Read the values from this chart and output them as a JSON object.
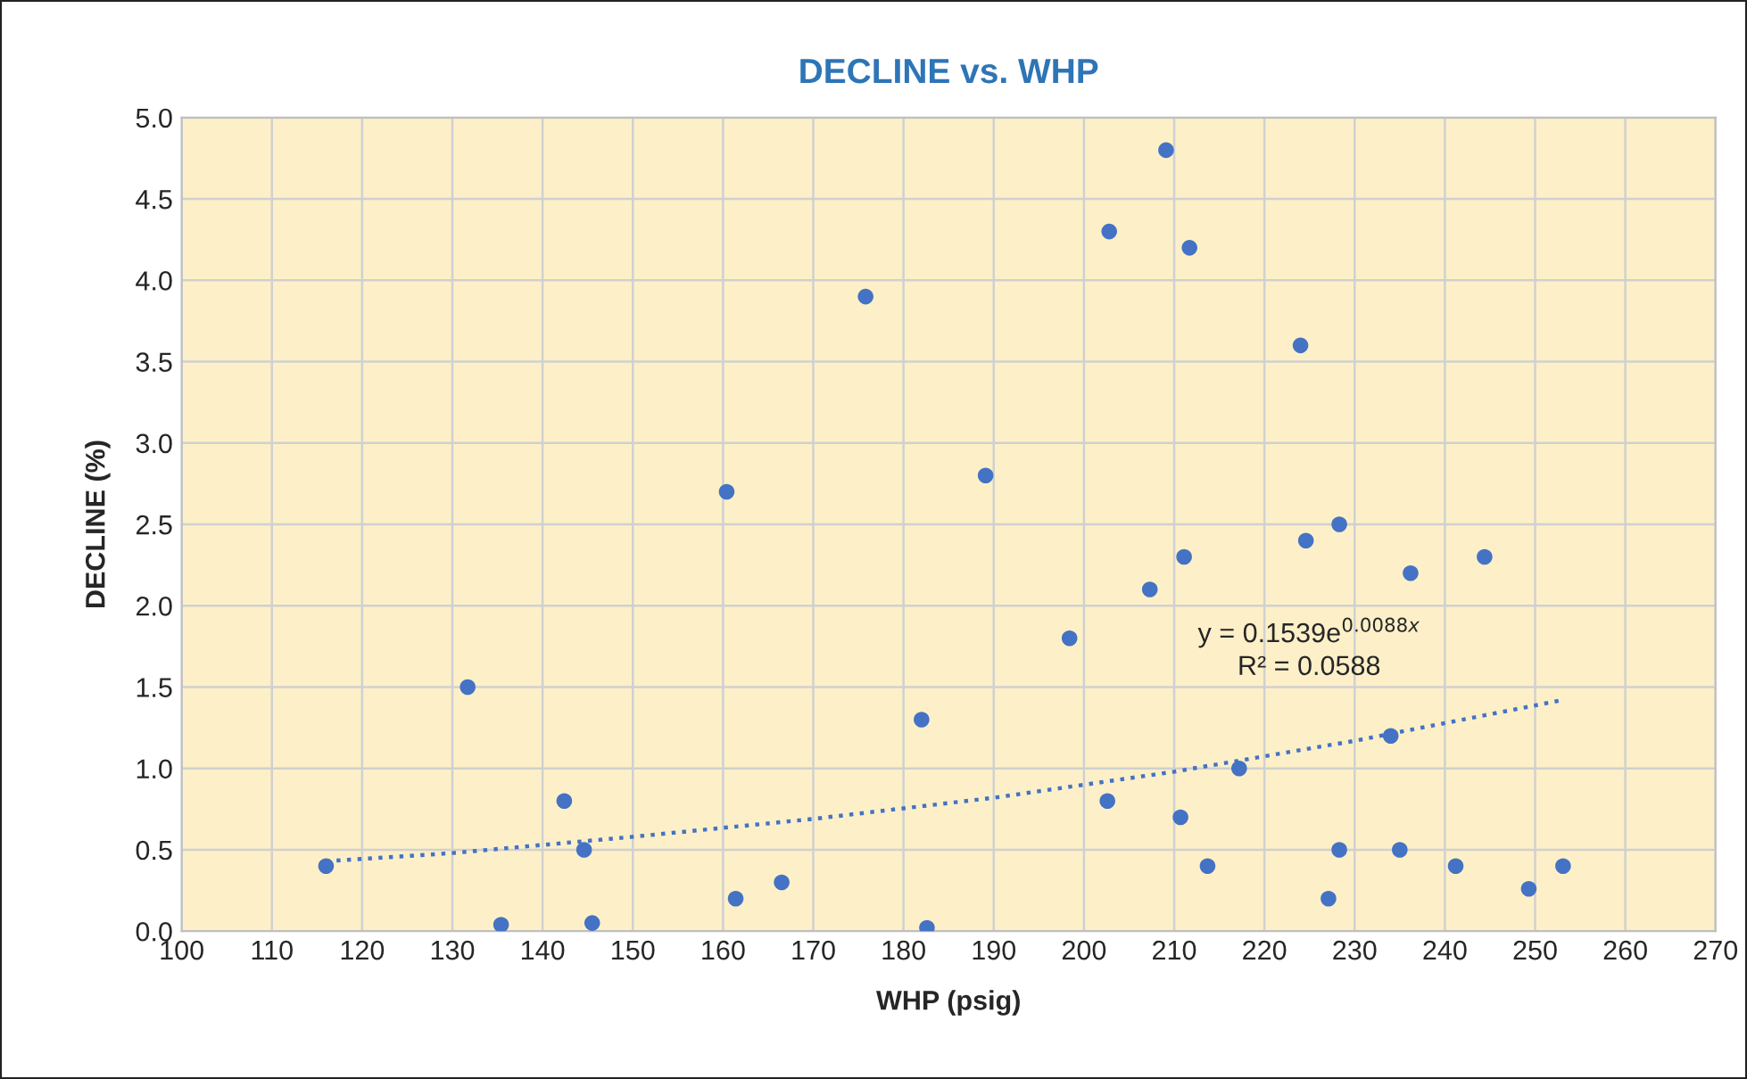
{
  "chart_data": {
    "type": "scatter",
    "title": "DECLINE vs. WHP",
    "xlabel": "WHP (psig)",
    "ylabel": "DECLINE (%)",
    "series": [
      {
        "marker": "circle",
        "color": "#4472c4",
        "x": [
          116.0,
          131.7,
          135.4,
          142.4,
          144.6,
          145.5,
          160.4,
          161.4,
          166.5,
          175.8,
          182.0,
          182.6,
          189.1,
          198.4,
          202.6,
          202.8,
          209.1,
          207.3,
          211.1,
          211.7,
          210.7,
          213.7,
          217.2,
          224.0,
          224.6,
          227.1,
          228.3,
          228.3,
          234.0,
          235.0,
          236.2,
          241.2,
          244.4,
          249.3,
          253.1
        ],
        "values": [
          0.4,
          1.5,
          0.04,
          0.8,
          0.5,
          0.05,
          2.7,
          0.2,
          0.3,
          3.9,
          1.3,
          0.02,
          2.8,
          1.8,
          0.8,
          4.3,
          4.8,
          2.1,
          2.3,
          4.2,
          0.7,
          0.4,
          1.0,
          3.6,
          2.4,
          0.2,
          2.5,
          0.5,
          1.2,
          0.5,
          2.2,
          0.4,
          2.3,
          0.26,
          0.4
        ]
      },
      {
        "type": "line",
        "marker": "none",
        "color": "#4472c4",
        "line_style": "dotted",
        "x": [
          116,
          130,
          150,
          170,
          190,
          210,
          230,
          253
        ],
        "values": [
          0.43,
          0.48,
          0.58,
          0.69,
          0.82,
          0.98,
          1.17,
          1.42
        ]
      }
    ],
    "xlim": [
      100,
      270
    ],
    "xticks": [
      100,
      110,
      120,
      130,
      140,
      150,
      160,
      170,
      180,
      190,
      200,
      210,
      220,
      230,
      240,
      250,
      260,
      270
    ],
    "ylim": [
      0,
      5
    ],
    "yticks": [
      {
        "value": 0,
        "label": "0.0"
      },
      0.5,
      {
        "value": 1,
        "label": "1.0"
      },
      1.5,
      {
        "value": 2,
        "label": "2.0"
      },
      2.5,
      {
        "value": 3,
        "label": "3.0"
      },
      3.5,
      {
        "value": 4,
        "label": "4.0"
      },
      4.5,
      {
        "value": 5,
        "label": "5.0"
      }
    ],
    "grid": true,
    "annotations": [
      "y = 0.1539e$^{0.0088x}$",
      "R² = 0.0588"
    ]
  }
}
